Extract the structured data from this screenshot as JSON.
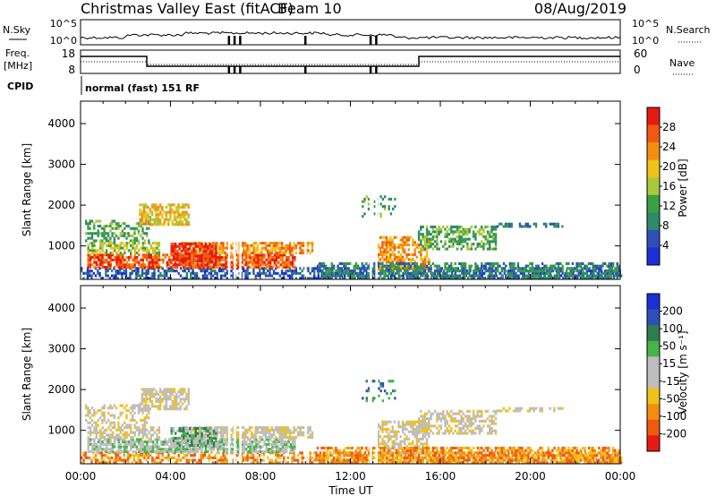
{
  "header": {
    "title": "Christmas Valley East (fitACF)",
    "beam": "Beam 10",
    "date": "08/Aug/2019"
  },
  "panel_nsky": {
    "left_label": "N.Sky",
    "left_ticks": [
      "10^5",
      "10^0"
    ],
    "right_ticks": [
      "10^5",
      "10^0"
    ],
    "right_label": "N.Search"
  },
  "panel_freq": {
    "left_label_1": "Freq.",
    "left_label_2": "[MHz]",
    "left_ticks": [
      "18",
      "8"
    ],
    "right_ticks": [
      "60",
      "0"
    ],
    "right_label": "Nave"
  },
  "cpid": {
    "label": "CPID",
    "mode": "normal (fast) 151 RF"
  },
  "colors": {
    "power": [
      "#1a2fd6",
      "#2f4fb8",
      "#2f8a6a",
      "#3aa043",
      "#a8c93a",
      "#f0c219",
      "#f58d10",
      "#f05a10",
      "#e61a10"
    ],
    "velocity": [
      "#e61a10",
      "#f05a10",
      "#f58d10",
      "#f0c219",
      "#bdbdbd",
      "#bdbdbd",
      "#45b548",
      "#2e7d4f",
      "#2f4fb8",
      "#1a2fd6"
    ]
  },
  "chart_data": [
    {
      "type": "heatmap",
      "name": "power",
      "ylabel": "Slant Range [km]",
      "yticks": [
        "4000",
        "3000",
        "2000",
        "1000"
      ],
      "ylim": [
        180,
        4550
      ],
      "xlim": [
        0,
        24
      ],
      "colorbar": {
        "label": "Power [dB]",
        "ticks": [
          "28",
          "24",
          "20",
          "16",
          "12",
          "8",
          "4"
        ],
        "range": [
          0,
          32
        ]
      }
    },
    {
      "type": "heatmap",
      "name": "velocity",
      "ylabel": "Slant Range [km]",
      "yticks": [
        "4000",
        "3000",
        "2000",
        "1000"
      ],
      "ylim": [
        180,
        4550
      ],
      "xlim": [
        0,
        24
      ],
      "xlabel": "Time UT",
      "xticks": [
        "00:00",
        "04:00",
        "08:00",
        "12:00",
        "16:00",
        "20:00",
        "00:00"
      ],
      "colorbar": {
        "label": "Velocity [m s⁻¹]",
        "ticks": [
          "200",
          "100",
          "50",
          "15",
          "-15",
          "-50",
          "-100",
          "-200"
        ]
      }
    }
  ]
}
